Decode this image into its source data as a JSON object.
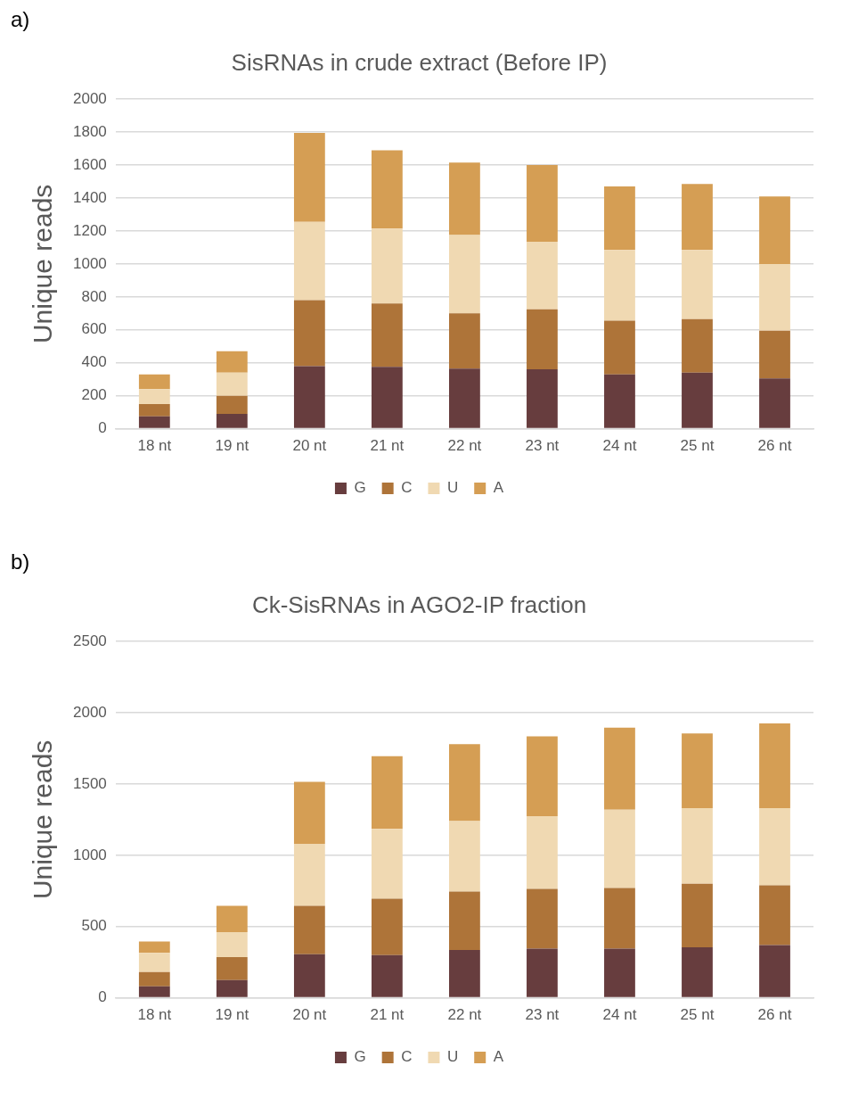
{
  "chart_data": [
    {
      "type": "bar",
      "title": "SisRNAs in crude extract (Before IP)",
      "ylabel": "Unique reads",
      "annotations": [
        "a)"
      ],
      "stacked": true,
      "grid": "y",
      "legend": "bottom",
      "categories": [
        "18 nt",
        "19 nt",
        "20 nt",
        "21 nt",
        "22 nt",
        "23 nt",
        "24 nt",
        "25 nt",
        "26 nt"
      ],
      "ylim": [
        0,
        2000
      ],
      "yticks": [
        0,
        200,
        400,
        600,
        800,
        1000,
        1200,
        1400,
        1600,
        1800,
        2000
      ],
      "series": [
        {
          "name": "G",
          "color": "#673d3e",
          "values": [
            75,
            90,
            380,
            375,
            365,
            360,
            330,
            340,
            305
          ]
        },
        {
          "name": "C",
          "color": "#ae7439",
          "values": [
            75,
            110,
            400,
            385,
            335,
            365,
            325,
            325,
            290
          ]
        },
        {
          "name": "U",
          "color": "#f0d9b2",
          "values": [
            90,
            140,
            475,
            455,
            475,
            410,
            430,
            420,
            405
          ]
        },
        {
          "name": "A",
          "color": "#d59e54",
          "values": [
            90,
            130,
            540,
            475,
            440,
            465,
            385,
            400,
            410
          ]
        }
      ]
    },
    {
      "type": "bar",
      "title": "Ck-SisRNAs in AGO2-IP fraction",
      "ylabel": "Unique reads",
      "annotations": [
        "b)"
      ],
      "stacked": true,
      "grid": "y",
      "legend": "bottom",
      "categories": [
        "18 nt",
        "19 nt",
        "20 nt",
        "21 nt",
        "22 nt",
        "23 nt",
        "24 nt",
        "25 nt",
        "26 nt"
      ],
      "ylim": [
        0,
        2500
      ],
      "yticks": [
        0,
        500,
        1000,
        1500,
        2000,
        2500
      ],
      "series": [
        {
          "name": "G",
          "color": "#673d3e",
          "values": [
            80,
            125,
            305,
            300,
            335,
            345,
            345,
            355,
            370
          ]
        },
        {
          "name": "C",
          "color": "#ae7439",
          "values": [
            100,
            160,
            340,
            395,
            410,
            420,
            425,
            445,
            420
          ]
        },
        {
          "name": "U",
          "color": "#f0d9b2",
          "values": [
            135,
            175,
            435,
            490,
            495,
            510,
            550,
            530,
            540
          ]
        },
        {
          "name": "A",
          "color": "#d59e54",
          "values": [
            80,
            185,
            435,
            510,
            540,
            560,
            575,
            525,
            595
          ]
        }
      ]
    }
  ]
}
